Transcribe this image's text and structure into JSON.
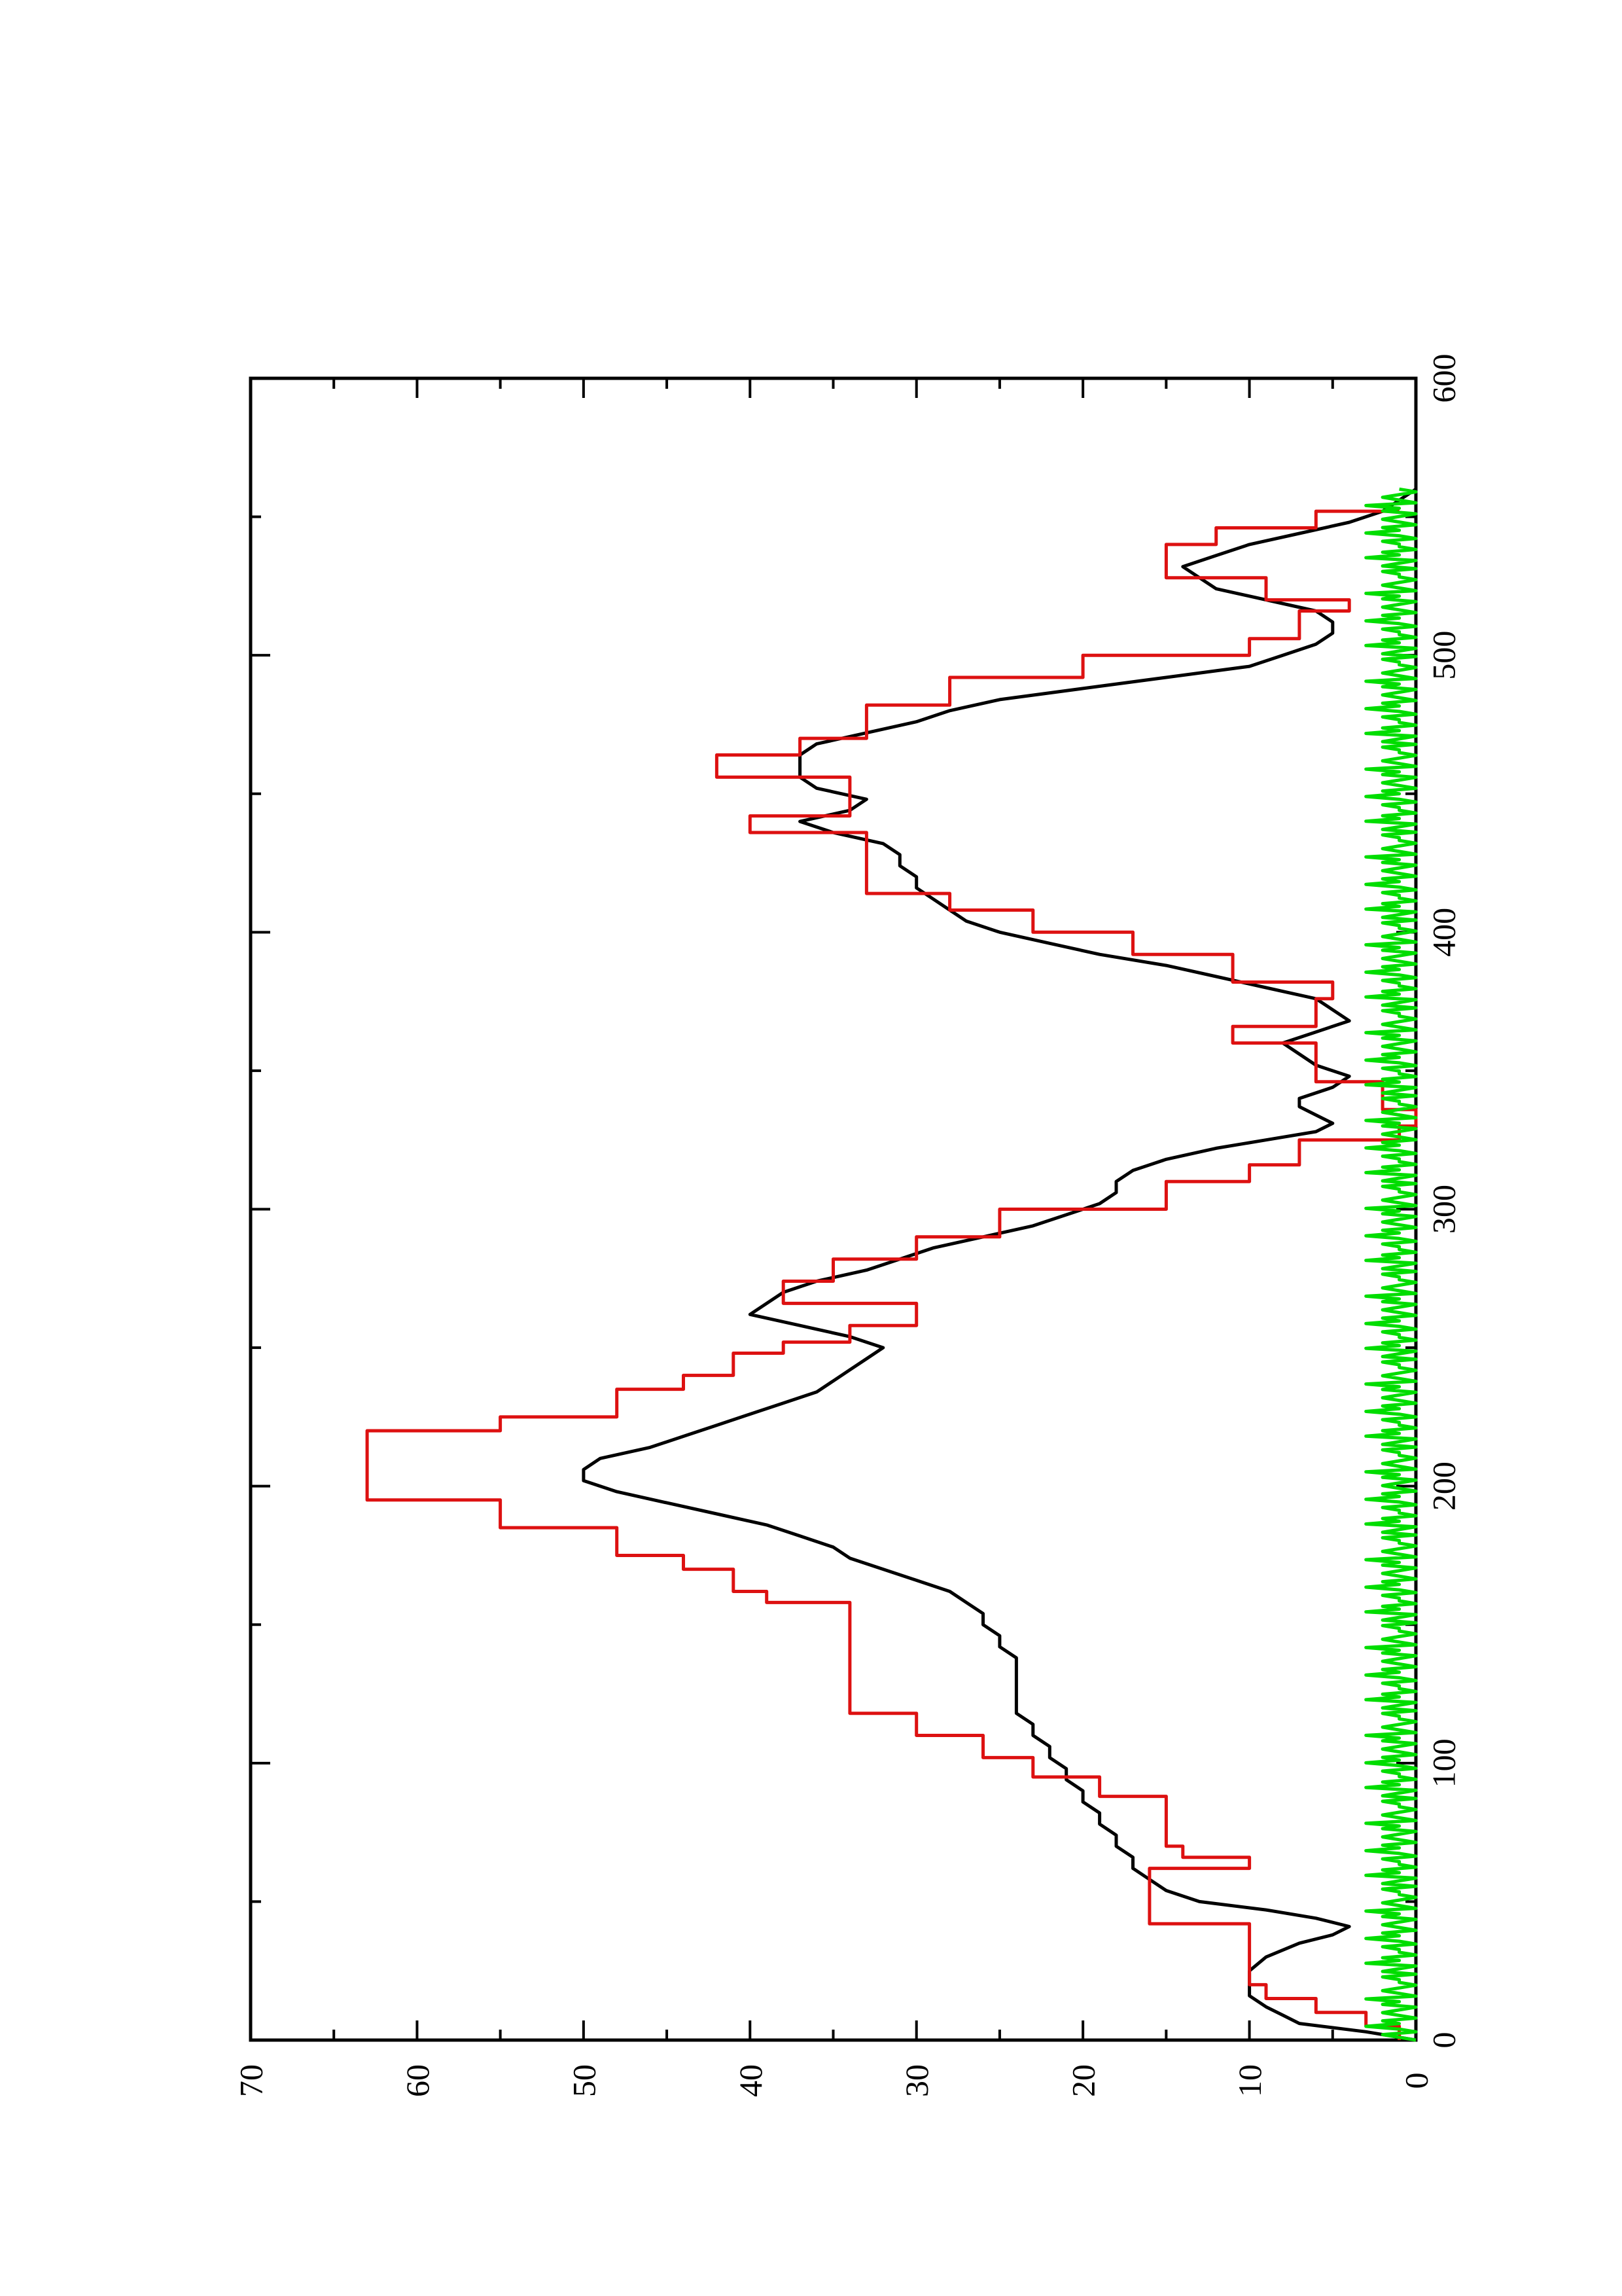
{
  "chart_data": {
    "type": "line",
    "orientation": "rotated-90-ccw",
    "title": "",
    "xlabel": "",
    "ylabel": "",
    "xlim": [
      0,
      600
    ],
    "ylim": [
      0,
      70
    ],
    "x_ticks": [
      "0",
      "100",
      "200",
      "300",
      "400",
      "500",
      "600"
    ],
    "y_ticks": [
      "0",
      "10",
      "20",
      "30",
      "40",
      "50",
      "60",
      "70"
    ],
    "grid": false,
    "legend": "none",
    "series": [
      {
        "color": "#000000",
        "style": "line",
        "x": [
          0,
          3,
          6,
          9,
          12,
          16,
          20,
          25,
          30,
          35,
          38,
          41,
          44,
          47,
          50,
          54,
          58,
          62,
          66,
          70,
          74,
          78,
          82,
          86,
          90,
          94,
          98,
          102,
          106,
          110,
          114,
          118,
          122,
          126,
          130,
          134,
          138,
          142,
          146,
          150,
          154,
          158,
          162,
          166,
          170,
          174,
          178,
          182,
          186,
          190,
          194,
          198,
          202,
          206,
          210,
          214,
          218,
          222,
          226,
          230,
          234,
          238,
          242,
          246,
          250,
          254,
          258,
          262,
          266,
          270,
          274,
          278,
          282,
          286,
          290,
          294,
          298,
          302,
          306,
          310,
          314,
          318,
          322,
          325,
          328,
          331,
          334,
          337,
          340,
          344,
          348,
          352,
          356,
          360,
          364,
          368,
          372,
          376,
          380,
          384,
          388,
          392,
          396,
          400,
          404,
          408,
          412,
          416,
          420,
          424,
          428,
          432,
          436,
          440,
          444,
          448,
          452,
          456,
          460,
          464,
          468,
          472,
          476,
          480,
          484,
          488,
          492,
          496,
          500,
          504,
          508,
          512,
          516,
          520,
          524,
          528,
          532,
          536,
          540,
          544,
          548,
          552,
          556,
          560
        ],
        "values": [
          0,
          3,
          7,
          8,
          9,
          10,
          10,
          10,
          9,
          7,
          5,
          4,
          6,
          9,
          13,
          15,
          16,
          17,
          17,
          18,
          18,
          19,
          19,
          20,
          20,
          21,
          21,
          22,
          22,
          23,
          23,
          24,
          24,
          24,
          24,
          24,
          24,
          25,
          25,
          26,
          26,
          27,
          28,
          30,
          32,
          34,
          35,
          37,
          39,
          42,
          45,
          48,
          50,
          50,
          49,
          46,
          44,
          42,
          40,
          38,
          36,
          35,
          34,
          33,
          32,
          34,
          37,
          40,
          39,
          38,
          36,
          33,
          31,
          29,
          26,
          23,
          21,
          19,
          18,
          18,
          17,
          15,
          12,
          9,
          6,
          5,
          6,
          7,
          7,
          5,
          4,
          6,
          7,
          8,
          6,
          4,
          5,
          6,
          9,
          12,
          15,
          19,
          22,
          25,
          27,
          28,
          29,
          30,
          30,
          31,
          31,
          32,
          35,
          37,
          34,
          33,
          36,
          37,
          37,
          37,
          36,
          33,
          30,
          28,
          25,
          20,
          15,
          10,
          8,
          6,
          5,
          5,
          6,
          9,
          12,
          13,
          14,
          12,
          10,
          7,
          4,
          2,
          1,
          0
        ]
      },
      {
        "color": "#dd1111",
        "style": "step",
        "x": [
          0,
          5,
          10,
          15,
          20,
          36,
          42,
          58,
          62,
          66,
          70,
          78,
          88,
          95,
          102,
          110,
          118,
          150,
          158,
          162,
          170,
          175,
          185,
          195,
          210,
          220,
          225,
          235,
          240,
          248,
          252,
          258,
          266,
          274,
          282,
          290,
          300,
          310,
          316,
          325,
          330,
          336,
          346,
          360,
          366,
          376,
          382,
          392,
          400,
          408,
          414,
          436,
          442,
          456,
          464,
          470,
          482,
          492,
          500,
          506,
          516,
          520,
          528,
          534,
          540,
          546,
          552
        ],
        "values": [
          1,
          3,
          6,
          9,
          10,
          10,
          16,
          16,
          10,
          14,
          15,
          15,
          19,
          23,
          26,
          30,
          34,
          34,
          39,
          41,
          44,
          48,
          55,
          63,
          63,
          55,
          48,
          44,
          41,
          38,
          34,
          30,
          38,
          35,
          30,
          25,
          15,
          10,
          7,
          1,
          0,
          2,
          6,
          11,
          6,
          5,
          11,
          17,
          23,
          28,
          33,
          40,
          34,
          42,
          37,
          33,
          28,
          20,
          10,
          7,
          4,
          9,
          15,
          15,
          12,
          6,
          1
        ]
      },
      {
        "color": "#00dd00",
        "style": "noise",
        "values": [
          0,
          1,
          2,
          0,
          1,
          3,
          1,
          2,
          0,
          1,
          2,
          1,
          0,
          2,
          1,
          3,
          0,
          1,
          2,
          1,
          0,
          1,
          1,
          2,
          0,
          2,
          1,
          0,
          3,
          1,
          2,
          0,
          1,
          1,
          2,
          0,
          1,
          3,
          1,
          2,
          0,
          1,
          2,
          1,
          0,
          2,
          1,
          3,
          0,
          1,
          2,
          1,
          0,
          1,
          1,
          2,
          0,
          2,
          1,
          0,
          3,
          1,
          2,
          0,
          1,
          1,
          2,
          0,
          1,
          3,
          1,
          2,
          0,
          1,
          2,
          1,
          0,
          2,
          1,
          3,
          0,
          1,
          2,
          1,
          0,
          1,
          1,
          2,
          0,
          2,
          1,
          0,
          3,
          1,
          2,
          0,
          1,
          1,
          2,
          0,
          1,
          3,
          1,
          2,
          0,
          1,
          2,
          1,
          0,
          2,
          1,
          3,
          0,
          1,
          2,
          1,
          0,
          1,
          1,
          2,
          0,
          2,
          1,
          0,
          3,
          1,
          2,
          0,
          1,
          1,
          2,
          0,
          1,
          3,
          1,
          2,
          0,
          1,
          2,
          1,
          0,
          2,
          1,
          3,
          0,
          1,
          2,
          1,
          0,
          1,
          1,
          2,
          0,
          2,
          1,
          0,
          3,
          1,
          2,
          0,
          1,
          1,
          2,
          0,
          1,
          3,
          1,
          2,
          0,
          1,
          2,
          1,
          0,
          2,
          1,
          3,
          0,
          1,
          2,
          1,
          0,
          1,
          1,
          2,
          0,
          2,
          1,
          0,
          3,
          1,
          2,
          0,
          1,
          1,
          2,
          0,
          1,
          3,
          1,
          2,
          0,
          1,
          2,
          1,
          0,
          2,
          1,
          3,
          0,
          1,
          2,
          1,
          0,
          1,
          1,
          2,
          0,
          2,
          1,
          0,
          3,
          1,
          2,
          0,
          1,
          1,
          2,
          0,
          1,
          3,
          1,
          2,
          0,
          1,
          2,
          1,
          0,
          2,
          1,
          3,
          0,
          1,
          2,
          1,
          0,
          1,
          1,
          2,
          0,
          2,
          1,
          0,
          3,
          1,
          2,
          0,
          1,
          1,
          2,
          0,
          1,
          3,
          1,
          2,
          0,
          1,
          2,
          1,
          0,
          2,
          1,
          3,
          0,
          1,
          2,
          1,
          0,
          1,
          1,
          2,
          0,
          2,
          1,
          0,
          3,
          1,
          2,
          0,
          1,
          1,
          2,
          0,
          1,
          3,
          1,
          2,
          0,
          1,
          2,
          1,
          0,
          2,
          1,
          3,
          0,
          1,
          2,
          1,
          0,
          1,
          1,
          2,
          0,
          2,
          1,
          0,
          3,
          1,
          2,
          0,
          1,
          1,
          2,
          0,
          1,
          3,
          1,
          2,
          0,
          1,
          2,
          1,
          0,
          2,
          1,
          3,
          0,
          1,
          2,
          1,
          0,
          1,
          1,
          2,
          0,
          2,
          1,
          0,
          3,
          1,
          2,
          0,
          1,
          1,
          2,
          0,
          1,
          3,
          1,
          2,
          0,
          1,
          2,
          1,
          0,
          2,
          1,
          3,
          0,
          1,
          2,
          1,
          0,
          1,
          1,
          2,
          0,
          2,
          1,
          0,
          3,
          1,
          2,
          0,
          1,
          1,
          2,
          0,
          1,
          3,
          1,
          2,
          0,
          1,
          2,
          1,
          0,
          2,
          1,
          3,
          0,
          1,
          2,
          1,
          0,
          1,
          1,
          2,
          0,
          2,
          1,
          0,
          3,
          1,
          2,
          0,
          1,
          1,
          2,
          0,
          1,
          3,
          1,
          2,
          0,
          1,
          2,
          1,
          0,
          2,
          1,
          3,
          0,
          1,
          2,
          1,
          0,
          1,
          1,
          2,
          0,
          2,
          1,
          0,
          3,
          1,
          2,
          0,
          1,
          1,
          2,
          0,
          1,
          3,
          1,
          2,
          0,
          1,
          2,
          1,
          0,
          2,
          1,
          3,
          0,
          1,
          2,
          1,
          0,
          1,
          1,
          2,
          0,
          2,
          1,
          0,
          3,
          1,
          2,
          0,
          1,
          1,
          2,
          0,
          1,
          3,
          1,
          2,
          0,
          1,
          2,
          1,
          0,
          2,
          1,
          3,
          0,
          1,
          2,
          1,
          0,
          1,
          1,
          2,
          0,
          2,
          1,
          0,
          3,
          1,
          2,
          0,
          1,
          1,
          2,
          0,
          1,
          3,
          1,
          2,
          0,
          1,
          2,
          1,
          0,
          2,
          1,
          3,
          0,
          1,
          2,
          1,
          0,
          1,
          1,
          2,
          0,
          2,
          1,
          0,
          3,
          1,
          2,
          0,
          1,
          1,
          2,
          0,
          1,
          3,
          1,
          2,
          0,
          1,
          2,
          1,
          0,
          2,
          1,
          3,
          0,
          1,
          2,
          1,
          0,
          1
        ]
      }
    ]
  }
}
